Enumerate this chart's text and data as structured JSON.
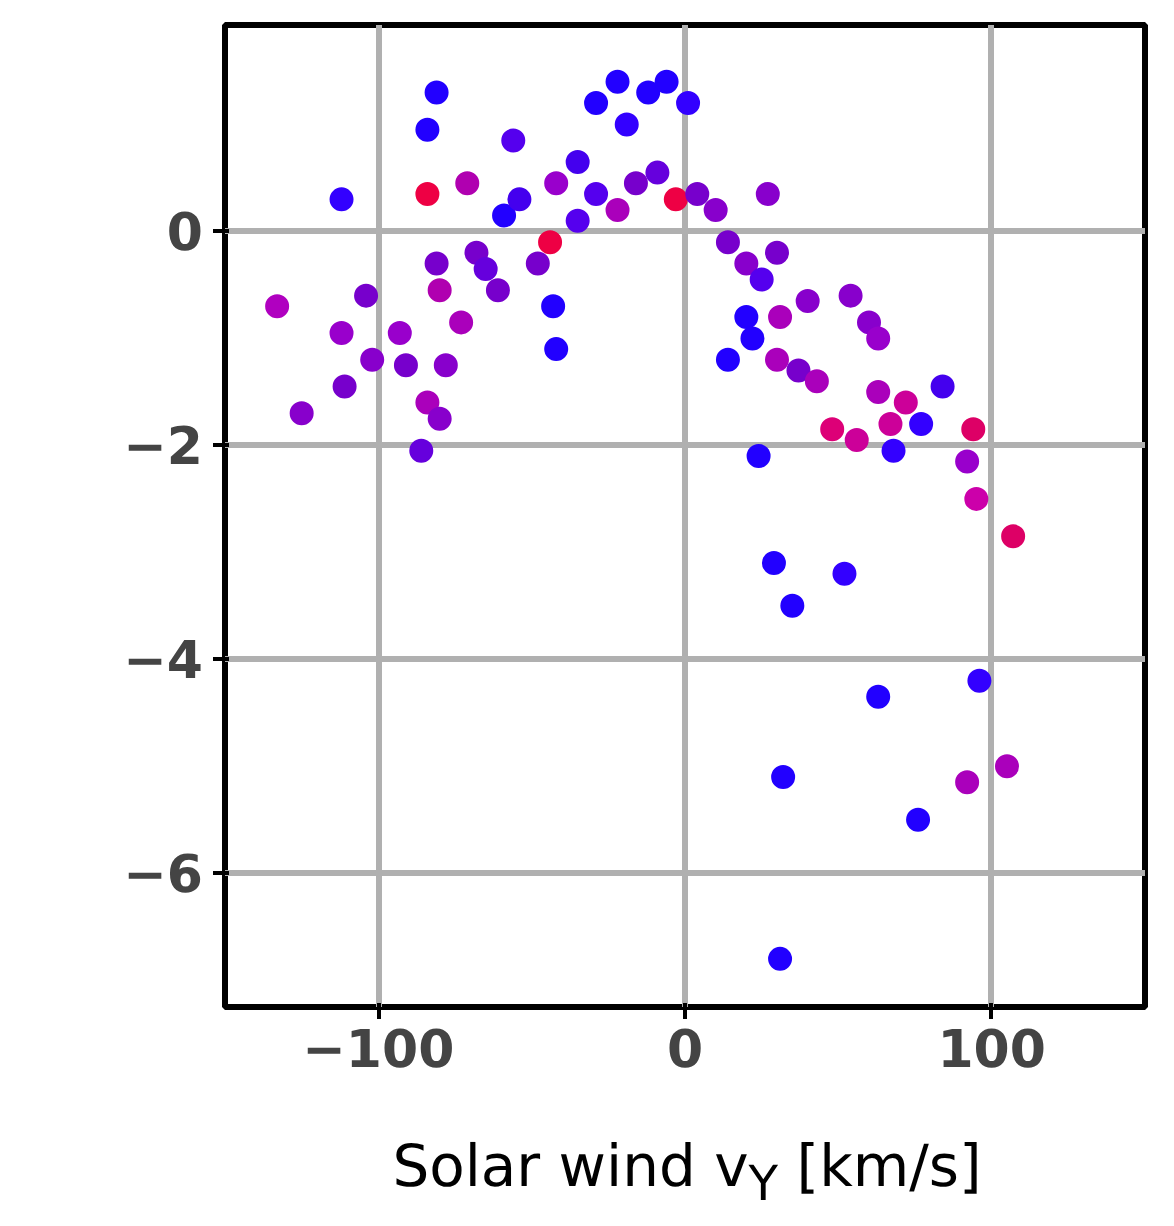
{
  "chart_data": {
    "type": "scatter",
    "xlabel": "Solar wind v$_{Y}$ [km/s]",
    "marker": "circle",
    "grid": true,
    "xlim": [
      -150,
      150
    ],
    "ylim": [
      -7.25,
      1.93
    ],
    "xticks": [
      {
        "value": -100,
        "label": "−100"
      },
      0,
      100
    ],
    "yticks": [
      {
        "value": -6,
        "label": "−6"
      },
      {
        "value": -4,
        "label": "−4"
      },
      {
        "value": -2,
        "label": "−2"
      },
      0
    ],
    "x": [
      -133,
      -125,
      -112,
      -111,
      -112,
      -104,
      -102,
      -93,
      -91,
      -86,
      -84,
      -84,
      -81,
      -80,
      -78,
      -80,
      -81,
      -84,
      -73,
      -71,
      -68,
      -65,
      -61,
      -59,
      -56,
      -54,
      -43,
      -42,
      -44,
      -48,
      -35,
      -29,
      -22,
      -19,
      -12,
      -6,
      1,
      -16,
      -29,
      -42,
      -9,
      -3,
      4,
      10,
      -22,
      -35,
      14,
      20,
      27,
      30,
      25,
      20,
      22,
      14,
      31,
      40,
      30,
      37,
      43,
      54,
      60,
      63,
      63,
      67,
      56,
      48,
      72,
      84,
      77,
      94,
      92,
      95,
      107,
      24,
      68,
      29,
      52,
      35,
      96,
      63,
      32,
      92,
      105,
      76,
      31
    ],
    "values": [
      -0.7,
      -1.7,
      -0.95,
      -1.45,
      0.3,
      -0.6,
      -1.2,
      -0.95,
      -1.25,
      -2.05,
      0.35,
      -1.6,
      -0.3,
      -0.55,
      -1.25,
      -1.75,
      1.3,
      0.95,
      -0.85,
      0.45,
      -0.2,
      -0.35,
      -0.55,
      0.15,
      0.85,
      0.3,
      -0.7,
      -1.1,
      -0.1,
      -0.3,
      0.65,
      1.2,
      1.4,
      1.0,
      1.3,
      1.4,
      1.2,
      0.45,
      0.35,
      0.45,
      0.55,
      0.3,
      0.35,
      0.2,
      0.2,
      0.1,
      -0.1,
      -0.3,
      0.35,
      -0.2,
      -0.45,
      -0.8,
      -1.0,
      -1.2,
      -0.8,
      -0.65,
      -1.2,
      -1.3,
      -1.4,
      -0.6,
      -0.85,
      -1.0,
      -1.5,
      -1.8,
      -1.95,
      -1.85,
      -1.6,
      -1.45,
      -1.8,
      -1.85,
      -2.15,
      -2.5,
      -2.85,
      -2.1,
      -2.05,
      -3.1,
      -3.2,
      -3.5,
      -4.2,
      -4.35,
      -5.1,
      -5.15,
      -5.0,
      -5.5,
      -6.8
    ],
    "colors": [
      "#b000c0",
      "#8800cc",
      "#9900cc",
      "#7700cc",
      "#3300ff",
      "#7700cc",
      "#8800cc",
      "#9900cc",
      "#7700cc",
      "#6600dd",
      "#ee0044",
      "#aa00bb",
      "#7700cc",
      "#b000b0",
      "#8800cc",
      "#8800cc",
      "#2200ff",
      "#2200ff",
      "#aa00bb",
      "#b000b0",
      "#7700cc",
      "#6600dd",
      "#7700cc",
      "#2200ff",
      "#5500ee",
      "#4400ee",
      "#2200ff",
      "#2200ff",
      "#ee0044",
      "#7700cc",
      "#4400ee",
      "#2200ff",
      "#2200ff",
      "#3300ff",
      "#2200ff",
      "#2200ff",
      "#3300ff",
      "#7700cc",
      "#5500ee",
      "#9900cc",
      "#6600dd",
      "#ee0044",
      "#7700cc",
      "#8800cc",
      "#aa00bb",
      "#5500ee",
      "#7700cc",
      "#8800cc",
      "#8800cc",
      "#7700cc",
      "#5500ee",
      "#2200ff",
      "#2200ff",
      "#2200ff",
      "#aa00bb",
      "#8800cc",
      "#aa00bb",
      "#7700cc",
      "#aa00bb",
      "#8800cc",
      "#8800cc",
      "#9900cc",
      "#aa00bb",
      "#cc0099",
      "#cc0099",
      "#dd0077",
      "#cc0099",
      "#4400ee",
      "#3300ff",
      "#dd0066",
      "#9900cc",
      "#cc00aa",
      "#dd0066",
      "#2200ff",
      "#3300ff",
      "#2200ff",
      "#3300ff",
      "#2200ff",
      "#3300ff",
      "#2200ff",
      "#2200ff",
      "#aa00bb",
      "#aa00bb",
      "#2200ff",
      "#2200ff"
    ]
  }
}
